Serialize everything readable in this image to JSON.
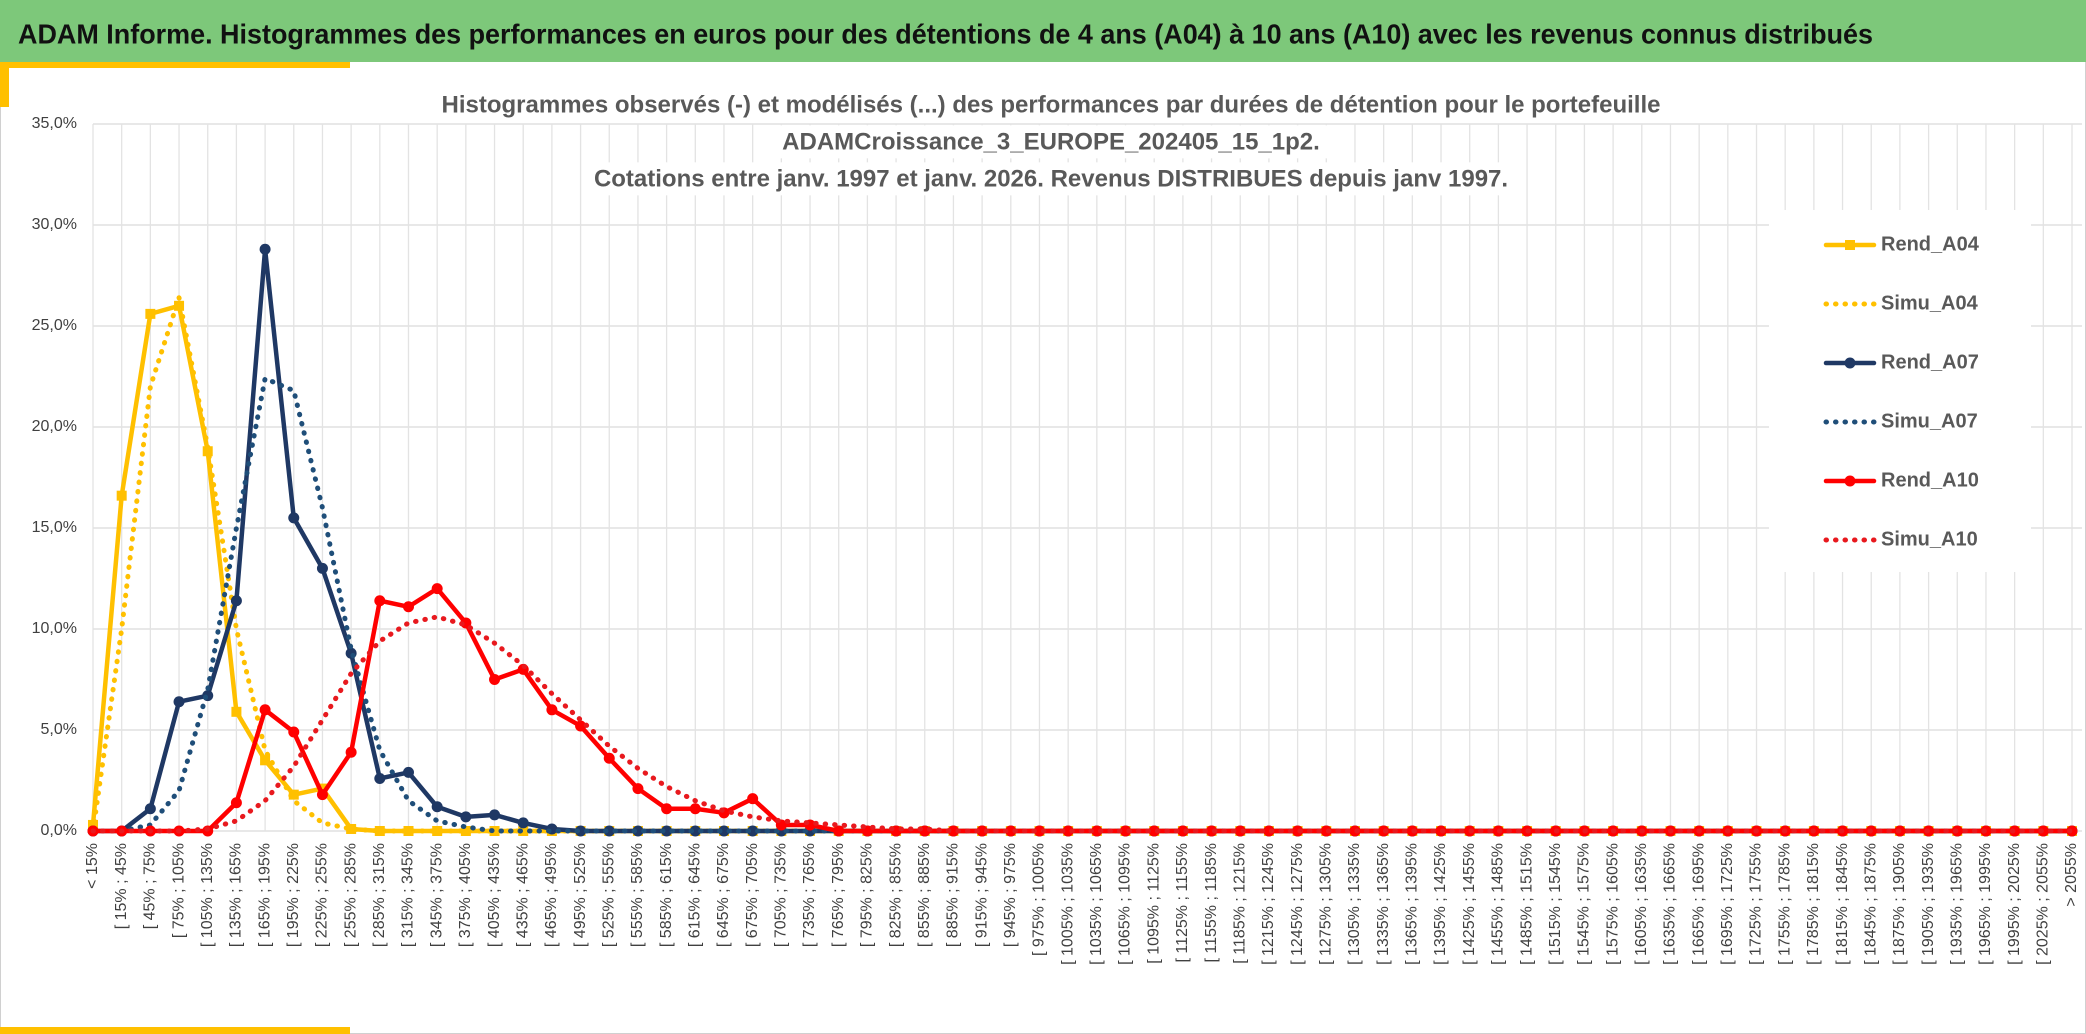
{
  "header": {
    "title": "ADAM Informe. Histogrammes des performances en euros pour des détentions de 4 ans (A04) à 10 ans (A10) avec les revenus connus distribués"
  },
  "chart_data": {
    "type": "line",
    "title": [
      "Histogrammes observés (-) et modélisés (...) des performances  par durées de détention pour le portefeuille",
      "ADAMCroissance_3_EUROPE_202405_15_1p2.",
      "Cotations entre janv. 1997 et janv. 2026. Revenus DISTRIBUES depuis janv 1997."
    ],
    "categories": [
      "< 15%",
      "[ 15% ; 45%",
      "[ 45% ; 75%",
      "[ 75% ; 105%",
      "[ 105% ; 135%",
      "[ 135% ; 165%",
      "[ 165% ; 195%",
      "[ 195% ; 225%",
      "[ 225% ; 255%",
      "[ 255% ; 285%",
      "[ 285% ; 315%",
      "[ 315% ; 345%",
      "[ 345% ; 375%",
      "[ 375% ; 405%",
      "[ 405% ; 435%",
      "[ 435% ; 465%",
      "[ 465% ; 495%",
      "[ 495% ; 525%",
      "[ 525% ; 555%",
      "[ 555% ; 585%",
      "[ 585% ; 615%",
      "[ 615% ; 645%",
      "[ 645% ; 675%",
      "[ 675% ; 705%",
      "[ 705% ; 735%",
      "[ 735% ; 765%",
      "[ 765% ; 795%",
      "[ 795% ; 825%",
      "[ 825% ; 855%",
      "[ 855% ; 885%",
      "[ 885% ; 915%",
      "[ 915% ; 945%",
      "[ 945% ; 975%",
      "[ 975% ; 1005%",
      "[ 1005% ; 1035%",
      "[ 1035% ; 1065%",
      "[ 1065% ; 1095%",
      "[ 1095% ; 1125%",
      "[ 1125% ; 1155%",
      "[ 1155% ; 1185%",
      "[ 1185% ; 1215%",
      "[ 1215% ; 1245%",
      "[ 1245% ; 1275%",
      "[ 1275% ; 1305%",
      "[ 1305% ; 1335%",
      "[ 1335% ; 1365%",
      "[ 1365% ; 1395%",
      "[ 1395% ; 1425%",
      "[ 1425% ; 1455%",
      "[ 1455% ; 1485%",
      "[ 1485% ; 1515%",
      "[ 1515% ; 1545%",
      "[ 1545% ; 1575%",
      "[ 1575% ; 1605%",
      "[ 1605% ; 1635%",
      "[ 1635% ; 1665%",
      "[ 1665% ; 1695%",
      "[ 1695% ; 1725%",
      "[ 1725% ; 1755%",
      "[ 1755% ; 1785%",
      "[ 1785% ; 1815%",
      "[ 1815% ; 1845%",
      "[ 1845% ; 1875%",
      "[ 1875% ; 1905%",
      "[ 1905% ; 1935%",
      "[ 1935% ; 1965%",
      "[ 1965% ; 1995%",
      "[ 1995% ; 2025%",
      "[ 2025% ; 2055%",
      "> 2055%"
    ],
    "series": [
      {
        "name": "Rend_A04",
        "color": "#FFC000",
        "style": "solid",
        "marker": "square",
        "values": [
          0.3,
          16.6,
          25.6,
          26.0,
          18.8,
          5.9,
          3.5,
          1.8,
          2.1,
          0.1,
          0,
          0,
          0,
          0,
          0,
          0,
          0,
          0,
          0,
          0,
          0,
          0,
          0,
          0,
          0,
          0,
          0,
          0,
          0,
          0,
          0,
          0,
          0,
          0,
          0,
          0,
          0,
          0,
          0,
          0,
          0,
          0,
          0,
          0,
          0,
          0,
          0,
          0,
          0,
          0,
          0,
          0,
          0,
          0,
          0,
          0,
          0,
          0,
          0,
          0,
          0,
          0,
          0,
          0,
          0,
          0,
          0,
          0,
          0,
          0
        ]
      },
      {
        "name": "Simu_A04",
        "color": "#FFC000",
        "style": "dotted",
        "values": [
          0,
          10,
          22,
          26.4,
          19,
          10,
          4,
          1.5,
          0.4,
          0.1,
          0,
          0,
          0,
          0,
          0,
          0,
          0,
          0,
          0,
          0,
          0,
          0,
          0,
          0,
          0,
          0,
          0,
          0,
          0,
          0,
          0,
          0,
          0,
          0,
          0,
          0,
          0,
          0,
          0,
          0,
          0,
          0,
          0,
          0,
          0,
          0,
          0,
          0,
          0,
          0,
          0,
          0,
          0,
          0,
          0,
          0,
          0,
          0,
          0,
          0,
          0,
          0,
          0,
          0,
          0,
          0,
          0,
          0,
          0,
          0
        ]
      },
      {
        "name": "Rend_A07",
        "color": "#1F3864",
        "style": "solid",
        "marker": "circle",
        "values": [
          0,
          0,
          1.1,
          6.4,
          6.7,
          11.4,
          28.8,
          15.5,
          13.0,
          8.8,
          2.6,
          2.9,
          1.2,
          0.7,
          0.8,
          0.4,
          0.1,
          0,
          0,
          0,
          0,
          0,
          0,
          0,
          0,
          0,
          0,
          0,
          0,
          0,
          0,
          0,
          0,
          0,
          0,
          0,
          0,
          0,
          0,
          0,
          0,
          0,
          0,
          0,
          0,
          0,
          0,
          0,
          0,
          0,
          0,
          0,
          0,
          0,
          0,
          0,
          0,
          0,
          0,
          0,
          0,
          0,
          0,
          0,
          0,
          0,
          0,
          0,
          0,
          0
        ]
      },
      {
        "name": "Simu_A07",
        "color": "#1F4E79",
        "style": "dotted",
        "values": [
          0,
          0,
          0.3,
          2,
          7,
          15,
          22.4,
          21.8,
          16,
          9,
          4,
          1.5,
          0.5,
          0.2,
          0,
          0,
          0,
          0,
          0,
          0,
          0,
          0,
          0,
          0,
          0,
          0,
          0,
          0,
          0,
          0,
          0,
          0,
          0,
          0,
          0,
          0,
          0,
          0,
          0,
          0,
          0,
          0,
          0,
          0,
          0,
          0,
          0,
          0,
          0,
          0,
          0,
          0,
          0,
          0,
          0,
          0,
          0,
          0,
          0,
          0,
          0,
          0,
          0,
          0,
          0,
          0,
          0,
          0,
          0,
          0
        ]
      },
      {
        "name": "Rend_A10",
        "color": "#FF0000",
        "style": "solid",
        "marker": "circle",
        "values": [
          0,
          0,
          0,
          0,
          0,
          1.4,
          6.0,
          4.9,
          1.8,
          3.9,
          11.4,
          11.1,
          12.0,
          10.3,
          7.5,
          8.0,
          6.0,
          5.2,
          3.6,
          2.1,
          1.1,
          1.1,
          0.9,
          1.6,
          0.3,
          0.3,
          0,
          0,
          0,
          0,
          0,
          0,
          0,
          0,
          0,
          0,
          0,
          0,
          0,
          0,
          0,
          0,
          0,
          0,
          0,
          0,
          0,
          0,
          0,
          0,
          0,
          0,
          0,
          0,
          0,
          0,
          0,
          0,
          0,
          0,
          0,
          0,
          0,
          0,
          0,
          0,
          0,
          0,
          0,
          0
        ]
      },
      {
        "name": "Simu_A10",
        "color": "#E8191E",
        "style": "dotted",
        "values": [
          0,
          0,
          0,
          0,
          0.1,
          0.5,
          1.5,
          3.2,
          5.5,
          7.8,
          9.4,
          10.3,
          10.6,
          10.2,
          9.3,
          8.2,
          6.8,
          5.5,
          4.2,
          3.1,
          2.2,
          1.5,
          1.0,
          0.7,
          0.5,
          0.4,
          0.3,
          0.2,
          0.1,
          0.1,
          0,
          0,
          0,
          0,
          0,
          0,
          0,
          0,
          0,
          0,
          0,
          0,
          0,
          0,
          0,
          0,
          0,
          0,
          0,
          0,
          0,
          0,
          0,
          0,
          0,
          0,
          0,
          0,
          0,
          0,
          0,
          0,
          0,
          0,
          0,
          0,
          0,
          0,
          0,
          0
        ]
      }
    ],
    "ylim": [
      0,
      35
    ],
    "yticks": [
      {
        "value": 0,
        "label": "0,0%"
      },
      {
        "value": 5,
        "label": "5,0%"
      },
      {
        "value": 10,
        "label": "10,0%"
      },
      {
        "value": 15,
        "label": "15,0%"
      },
      {
        "value": 20,
        "label": "20,0%"
      },
      {
        "value": 25,
        "label": "25,0%"
      },
      {
        "value": 30,
        "label": "30,0%"
      },
      {
        "value": 35,
        "label": "35,0%"
      }
    ],
    "grid": true,
    "legend": "right"
  }
}
